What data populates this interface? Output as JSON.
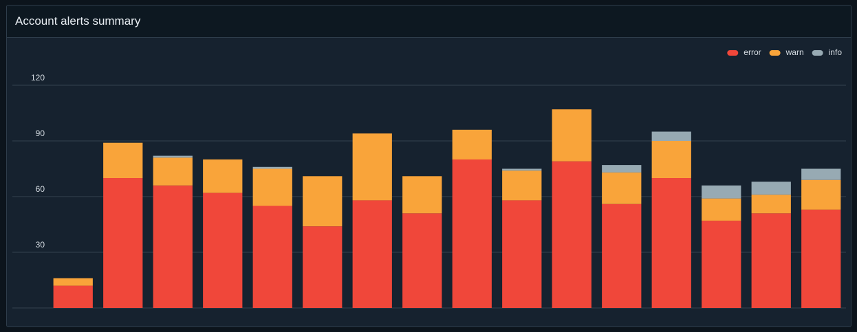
{
  "chart_data": {
    "type": "stacked_bar",
    "title": "Account alerts summary",
    "categories": [
      null,
      null,
      null,
      null,
      null,
      null,
      null,
      null,
      null,
      null,
      null,
      null,
      null,
      null,
      null,
      null
    ],
    "series": [
      {
        "name": "error",
        "color": "#f0473a",
        "values": [
          12,
          70,
          66,
          62,
          55,
          44,
          58,
          51,
          80,
          58,
          79,
          56,
          70,
          47,
          51,
          53
        ]
      },
      {
        "name": "warn",
        "color": "#f9a43a",
        "values": [
          4,
          19,
          15,
          18,
          20,
          27,
          36,
          20,
          16,
          16,
          28,
          17,
          20,
          12,
          10,
          16
        ]
      },
      {
        "name": "info",
        "color": "#97aab3",
        "values": [
          0,
          0,
          1,
          0,
          1,
          0,
          0,
          0,
          0,
          1,
          0,
          4,
          5,
          7,
          7,
          6
        ]
      }
    ],
    "ylim": [
      0,
      120
    ],
    "yticks": [
      30,
      60,
      90,
      120
    ],
    "grid": true,
    "legend": "top-right"
  }
}
